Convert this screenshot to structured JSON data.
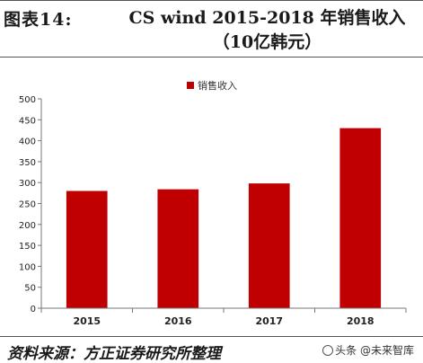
{
  "figure": {
    "label": "图表14:",
    "title": "CS wind 2015-2018 年销售收入（10亿韩元）"
  },
  "chart_data": {
    "type": "bar",
    "categories": [
      "2015",
      "2016",
      "2017",
      "2018"
    ],
    "series": [
      {
        "name": "销售收入",
        "values": [
          280,
          284,
          298,
          430
        ],
        "color": "#c00000"
      }
    ],
    "title": "",
    "xlabel": "",
    "ylabel": "",
    "ylim": [
      0,
      500
    ],
    "yticks": [
      "0",
      "50",
      "100",
      "150",
      "200",
      "250",
      "300",
      "350",
      "400",
      "450",
      "500"
    ],
    "legend_position": "top-center",
    "grid": false
  },
  "source": {
    "text": "资料来源：方正证券研究所整理"
  },
  "watermark": {
    "text": "头条 @未来智库",
    "icon": "watermark-icon"
  }
}
